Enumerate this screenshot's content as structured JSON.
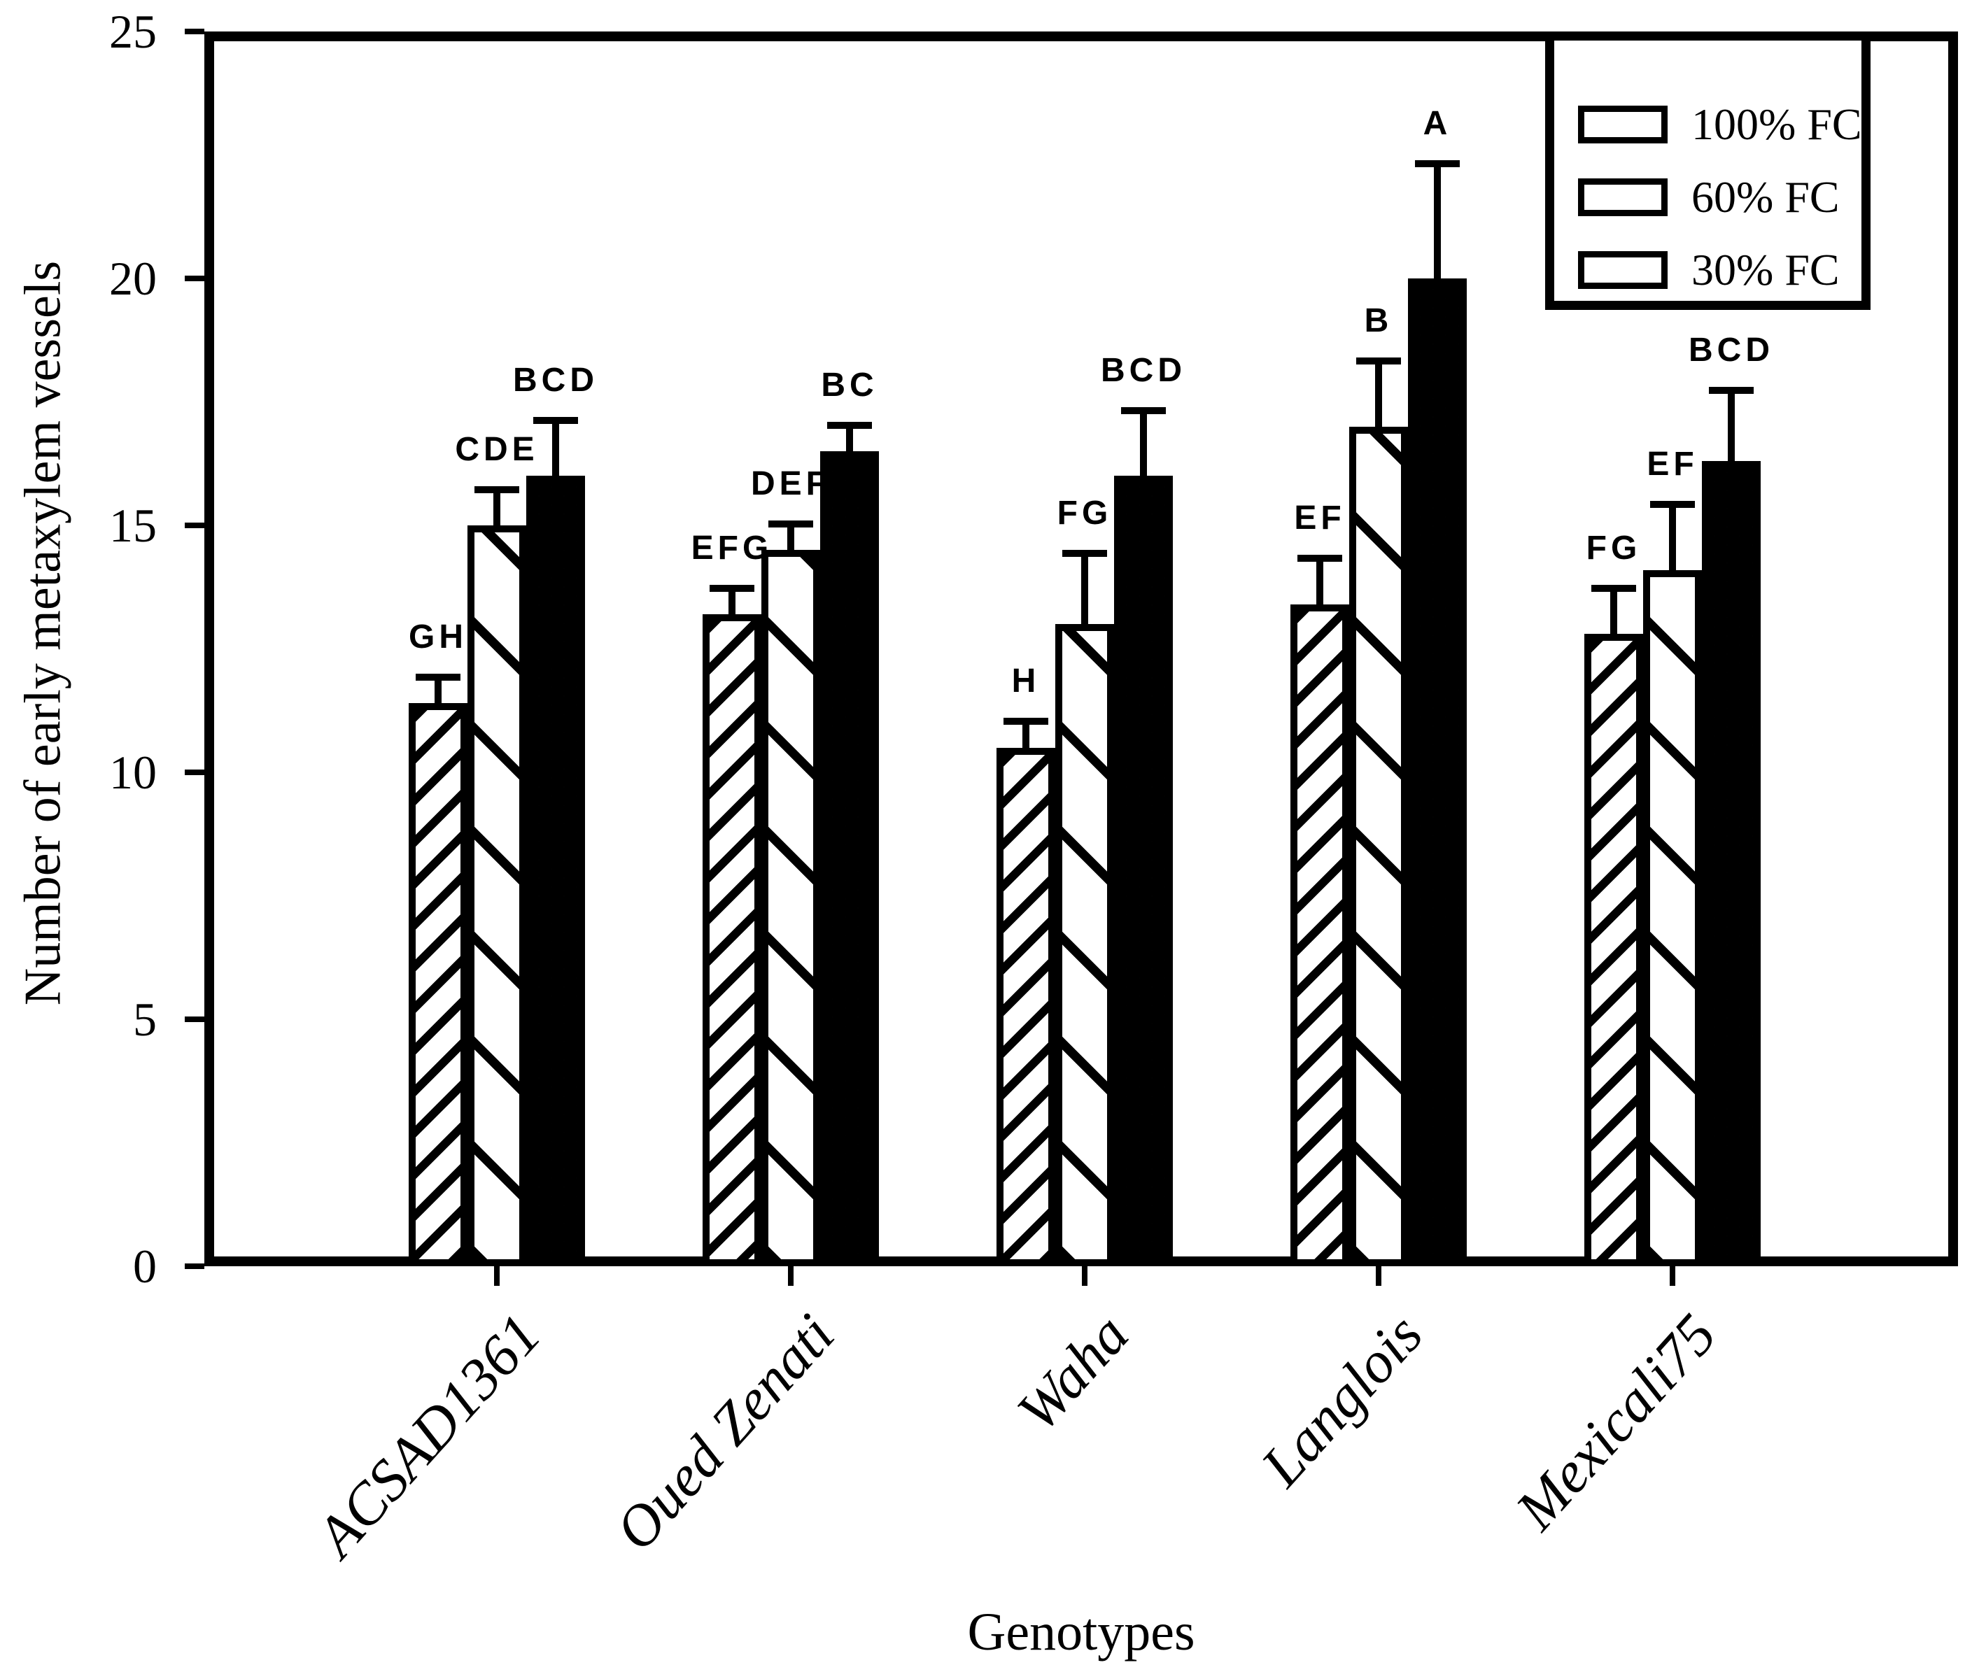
{
  "figure": {
    "background": "#ffffff",
    "ink": "#000000"
  },
  "chart_data": {
    "type": "bar",
    "title": "",
    "xlabel": "Genotypes",
    "ylabel": "Number of early metaxylem vessels",
    "ylim": [
      0,
      25
    ],
    "y_ticks": [
      0,
      5,
      10,
      15,
      20,
      25
    ],
    "grid": false,
    "legend_position": "top-right",
    "categories": [
      "ACSAD1361",
      "Oued Zenati",
      "Waha",
      "Langlois",
      "Mexicali75"
    ],
    "series": [
      {
        "name": "100% FC",
        "pattern": "diagonal-up-dense",
        "values": [
          11.4,
          13.2,
          10.5,
          13.4,
          12.8
        ],
        "errors_plus": [
          0.6,
          0.6,
          0.6,
          1.0,
          1.0
        ],
        "letters": [
          "GH",
          "EFG",
          "H",
          "EF",
          "FG"
        ]
      },
      {
        "name": "60% FC",
        "pattern": "diagonal-down-sparse",
        "values": [
          15.0,
          14.5,
          13.0,
          17.0,
          14.1
        ],
        "errors_plus": [
          0.8,
          0.6,
          1.5,
          1.4,
          1.4
        ],
        "letters": [
          "CDE",
          "DEF",
          "FG",
          "B",
          "EF"
        ]
      },
      {
        "name": "30% FC",
        "pattern": "dots",
        "values": [
          16.0,
          16.5,
          16.0,
          20.0,
          16.3
        ],
        "errors_plus": [
          1.2,
          0.6,
          1.4,
          2.4,
          1.5
        ],
        "letters": [
          "BCD",
          "BC",
          "BCD",
          "A",
          "BCD"
        ]
      }
    ]
  }
}
